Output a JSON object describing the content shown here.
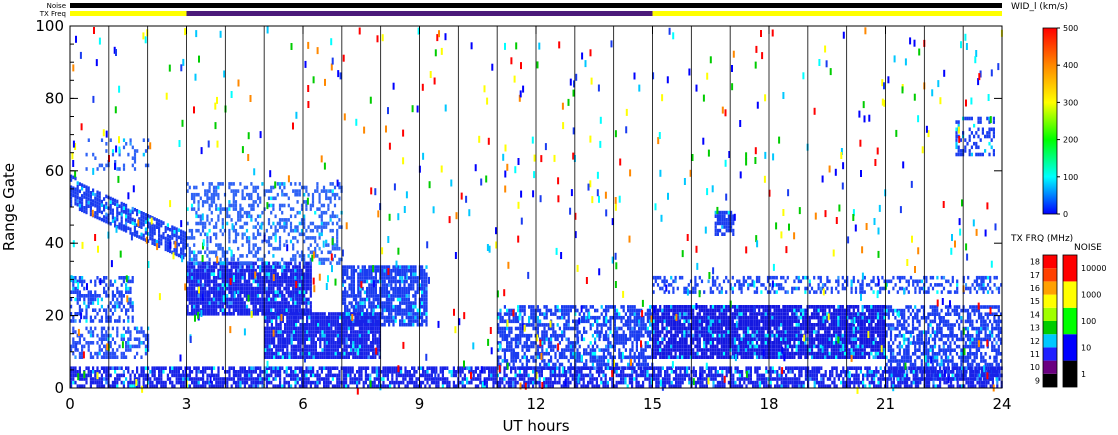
{
  "chart_data": {
    "type": "heatmap",
    "title": "",
    "xlabel": "UT hours",
    "ylabel": "Range Gate",
    "xlim": [
      0,
      24
    ],
    "ylim": [
      0,
      100
    ],
    "xticks": [
      0,
      3,
      6,
      9,
      12,
      15,
      18,
      21,
      24
    ],
    "yticks": [
      0,
      20,
      40,
      60,
      80,
      100
    ],
    "scan_boundaries_hours": [
      1,
      2,
      3,
      4,
      5,
      6,
      7,
      8,
      9,
      10,
      11,
      12,
      13,
      14,
      15,
      16,
      17,
      18,
      19,
      20,
      21,
      22,
      23
    ],
    "status_bars": {
      "noise_label": "Noise",
      "txfreq_label": "TX Freq",
      "noise_color": "#000000",
      "txfreq_segments": [
        {
          "start": 0,
          "end": 3,
          "color": "#ffff00"
        },
        {
          "start": 3,
          "end": 15,
          "color": "#4b1a7a"
        },
        {
          "start": 15,
          "end": 24,
          "color": "#ffff00"
        }
      ]
    },
    "echo_regions": [
      {
        "desc": "descending band",
        "x0": 0.0,
        "x1": 3.0,
        "y_start": [
          50,
          58
        ],
        "y_end": [
          35,
          42
        ],
        "color": "#1a3cf0",
        "density": 0.75
      },
      {
        "desc": "gates 20-30 early",
        "x0": 0.0,
        "x1": 1.6,
        "y0": 18,
        "y1": 30,
        "color": "#1e44f4",
        "density": 0.45
      },
      {
        "desc": "gates 8-16 early",
        "x0": 0.0,
        "x1": 2.0,
        "y0": 8,
        "y1": 16,
        "color": "#2a50f6",
        "density": 0.45
      },
      {
        "desc": "block 3-6",
        "x0": 3.0,
        "x1": 6.2,
        "y0": 20,
        "y1": 34,
        "color": "#1822e8",
        "density": 0.9
      },
      {
        "desc": "upper scattered 3-7",
        "x0": 3.0,
        "x1": 7.0,
        "y0": 34,
        "y1": 56,
        "color": "#2f63f6",
        "density": 0.35
      },
      {
        "desc": "blob 7-9",
        "x0": 7.0,
        "x1": 9.2,
        "y0": 17,
        "y1": 33,
        "color": "#1a3cf0",
        "density": 0.8
      },
      {
        "desc": "band 5-8",
        "x0": 5.0,
        "x1": 8.0,
        "y0": 8,
        "y1": 20,
        "color": "#1822e8",
        "density": 0.9
      },
      {
        "desc": "band 11-15",
        "x0": 11.0,
        "x1": 15.0,
        "y0": 5,
        "y1": 22,
        "color": "#1a3cf0",
        "density": 0.6
      },
      {
        "desc": "band 15-21",
        "x0": 15.0,
        "x1": 21.0,
        "y0": 8,
        "y1": 22,
        "color": "#1418e0",
        "density": 0.92
      },
      {
        "desc": "upper line 15-24",
        "x0": 15.0,
        "x1": 24.0,
        "y0": 26,
        "y1": 30,
        "color": "#1e44f4",
        "density": 0.4
      },
      {
        "desc": "band 21-24",
        "x0": 21.0,
        "x1": 24.0,
        "y0": 2,
        "y1": 22,
        "color": "#1a3cf0",
        "density": 0.6
      },
      {
        "desc": "low gates all day",
        "x0": 0.0,
        "x1": 24.0,
        "y0": 0,
        "y1": 5,
        "color": "#1822e8",
        "density": 0.7
      },
      {
        "desc": "blob near 17h",
        "x0": 16.6,
        "x1": 17.1,
        "y0": 42,
        "y1": 48,
        "color": "#1a3cf0",
        "density": 0.8
      },
      {
        "desc": "blob near 23h",
        "x0": 22.8,
        "x1": 23.8,
        "y0": 64,
        "y1": 74,
        "color": "#1a3cf0",
        "density": 0.4
      },
      {
        "desc": "blob near 1h",
        "x0": 0.4,
        "x1": 2.0,
        "y0": 60,
        "y1": 68,
        "color": "#2f63f6",
        "density": 0.2
      }
    ],
    "speckle_colors": [
      "#ff0000",
      "#0000ff",
      "#00c8ff",
      "#00ffff",
      "#ff8800",
      "#00cc00",
      "#ffff00",
      "#1a3cf0"
    ],
    "speckle_count": 650,
    "colorbars": [
      {
        "name": "WID_l",
        "title": "WID_l (km/s)",
        "ticks": [
          0,
          100,
          200,
          300,
          400,
          500
        ],
        "range": [
          0,
          500
        ],
        "stops": [
          "#0000ff",
          "#00ffff",
          "#00ff00",
          "#ffff00",
          "#ff8800",
          "#ff0000"
        ]
      },
      {
        "name": "TX FRQ",
        "title": "TX FRQ (MHz)",
        "ticks": [
          9,
          10,
          11,
          12,
          13,
          14,
          15,
          16,
          17,
          18
        ],
        "colors": [
          "#000000",
          "#6a0080",
          "#2020ff",
          "#00c8ff",
          "#00cc00",
          "#a0ff00",
          "#ffff00",
          "#ffa000",
          "#ff4000",
          "#ff0000"
        ]
      },
      {
        "name": "NOISE",
        "title": "NOISE",
        "ticks": [
          "1",
          "10",
          "100",
          "1000",
          "10000"
        ],
        "colors": [
          "#000000",
          "#0000ff",
          "#00ff00",
          "#ffff00",
          "#ff0000"
        ]
      }
    ]
  }
}
